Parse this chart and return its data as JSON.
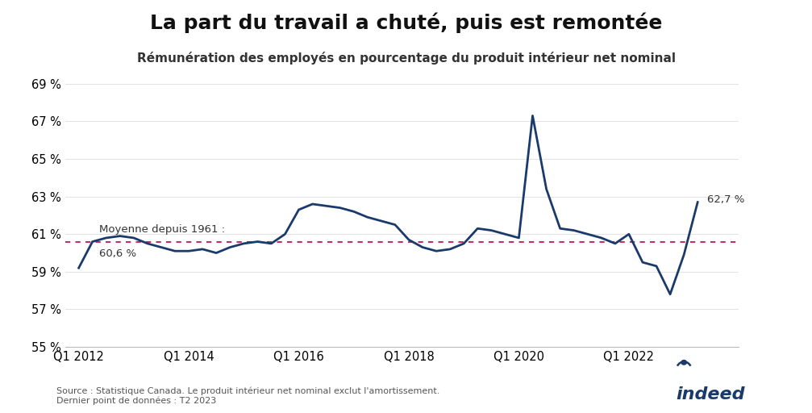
{
  "title": "La part du travail a chuté, puis est remontée",
  "subtitle": "Rémunération des employés en pourcentage du produit intérieur net nominal",
  "mean_value": 60.6,
  "mean_label_line1": "Moyenne depuis 1961 :",
  "mean_label_line2": "60,6 %",
  "last_value": 62.7,
  "last_label": "62,7 %",
  "source_text": "Source : Statistique Canada. Le produit intérieur net nominal exclut l'amortissement.\nDernier point de données : T2 2023",
  "line_color": "#1a3a6b",
  "mean_line_color": "#c0306a",
  "background_color": "#ffffff",
  "ylim": [
    55,
    69.5
  ],
  "yticks": [
    55,
    57,
    59,
    61,
    63,
    65,
    67,
    69
  ],
  "series_values": [
    59.2,
    60.6,
    60.8,
    60.9,
    60.8,
    60.5,
    60.3,
    60.1,
    60.1,
    60.2,
    60.0,
    60.3,
    60.5,
    60.6,
    60.5,
    61.0,
    62.3,
    62.6,
    62.5,
    62.4,
    62.2,
    61.9,
    61.7,
    61.5,
    60.7,
    60.3,
    60.1,
    60.2,
    60.5,
    61.3,
    61.2,
    61.0,
    60.8,
    67.3,
    63.4,
    61.3,
    61.2,
    61.0,
    60.8,
    60.5,
    61.0,
    59.5,
    59.3,
    57.8,
    59.9,
    62.7
  ],
  "xtick_positions": [
    0,
    8,
    16,
    24,
    32,
    40
  ],
  "xtick_labels": [
    "Q1 2012",
    "Q1 2014",
    "Q1 2016",
    "Q1 2018",
    "Q1 2020",
    "Q1 2022"
  ]
}
